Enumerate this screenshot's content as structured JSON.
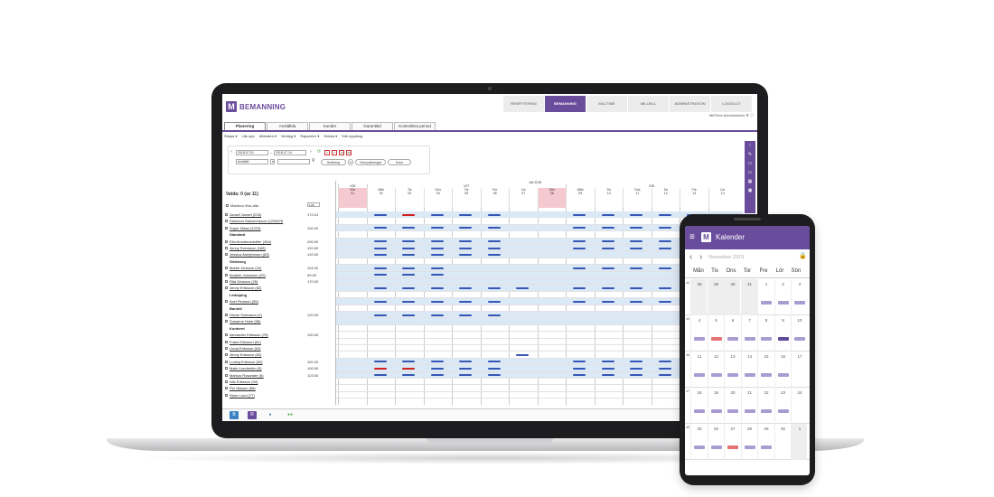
{
  "app": {
    "logo_letter": "M",
    "name": "BEMANNING",
    "topnav": [
      "REKRYTERING",
      "BEMANNING",
      "MILLTIME",
      "MILLBILL",
      "ADMINISTRATION",
      "LOGGA UT"
    ],
    "user_line": "MillTime Administratör",
    "tabs": [
      "Planering",
      "Anställda",
      "Kunder",
      "Garantitid",
      "Kontrollera period"
    ],
    "menu": [
      "Skapa ▾",
      "Lås upp",
      "Attestera ▾",
      "Verktyg ▾",
      "Rapporter ▾",
      "Skicka ▾",
      "Sök uppdrag"
    ]
  },
  "filters": {
    "date_from": "2018-07-01",
    "date_to": "2018-07-14",
    "select": "Anställd",
    "buttons": [
      "Sortering",
      "Visa justeringar",
      "Kolor"
    ],
    "cal_icons": [
      "1",
      "7",
      "14",
      "30"
    ]
  },
  "grid": {
    "selected": "Valda: 0 (av 11)",
    "mark_all": "Markera Visa alla",
    "sort_label": "Lös",
    "month": "Juli 2018",
    "weeks": [
      "V26",
      "V27",
      "V28"
    ],
    "days": [
      {
        "wd": "Sön",
        "d": "01",
        "we": true
      },
      {
        "wd": "Mån",
        "d": "02",
        "we": false
      },
      {
        "wd": "Tis",
        "d": "03",
        "we": false
      },
      {
        "wd": "Ons",
        "d": "04",
        "we": false
      },
      {
        "wd": "Tor",
        "d": "05",
        "we": false
      },
      {
        "wd": "Fre",
        "d": "06",
        "we": false
      },
      {
        "wd": "Lör",
        "d": "07",
        "we": false
      },
      {
        "wd": "Sön",
        "d": "08",
        "we": true
      },
      {
        "wd": "Mån",
        "d": "09",
        "we": false
      },
      {
        "wd": "Tis",
        "d": "10",
        "we": false
      },
      {
        "wd": "Ons",
        "d": "11",
        "we": false
      },
      {
        "wd": "Tor",
        "d": "12",
        "we": false
      },
      {
        "wd": "Fre",
        "d": "13",
        "we": false
      },
      {
        "wd": "Lör",
        "d": "14",
        "we": false
      }
    ],
    "rows": [
      {
        "name": "Joosef Joosef (233)",
        "val": "172.41",
        "grp": false
      },
      {
        "name": "Salomon Salomonsson (1234578",
        "val": "",
        "grp": false
      },
      {
        "name": "Super Nisse (1223)",
        "val": "110.00",
        "grp": false
      },
      {
        "name": "Standard",
        "val": "",
        "grp": true
      },
      {
        "name": "Elia Amadeusdottier (454)",
        "val": "200.00",
        "grp": false
      },
      {
        "name": "Jenny Svensson (188)",
        "val": "120.00",
        "grp": false
      },
      {
        "name": "Jessica Ambjörnsen (63)",
        "val": "120.00",
        "grp": false
      },
      {
        "name": "Göteborg",
        "val": "",
        "grp": true
      },
      {
        "name": "Martin Jönsson (24)",
        "val": "113.00",
        "grp": false
      },
      {
        "name": "Ibrahim Johnsson (29)",
        "val": "99.00",
        "grp": false
      },
      {
        "name": "Rita Jönsson (25)",
        "val": "170.00",
        "grp": false
      },
      {
        "name": "Jenny Eriksson (82)",
        "val": "",
        "grp": false
      },
      {
        "name": "Linköping",
        "val": "",
        "grp": true
      },
      {
        "name": "Axel Persson (55)",
        "val": "",
        "grp": false
      },
      {
        "name": "Barnbil",
        "val": "",
        "grp": true
      },
      {
        "name": "Göran Svensson (2)",
        "val": "120.00",
        "grp": false
      },
      {
        "name": "Susanne Holm (58)",
        "val": "",
        "grp": false
      },
      {
        "name": "Kontoret",
        "val": "",
        "grp": true
      },
      {
        "name": "Alexander Eriksson (78)",
        "val": "100.00",
        "grp": false
      },
      {
        "name": "Frans Eriksson (81)",
        "val": "",
        "grp": false
      },
      {
        "name": "Linda Eriksson (64)",
        "val": "",
        "grp": false
      },
      {
        "name": "Jenny Eriksson (82)",
        "val": "",
        "grp": false
      },
      {
        "name": "Ludvig Eriksson (82)",
        "val": "110.00",
        "grp": false
      },
      {
        "name": "Malin Lundström (5)",
        "val": "100.00",
        "grp": false
      },
      {
        "name": "Markus Rosander (6)",
        "val": "123.00",
        "grp": false
      },
      {
        "name": "Nils Eriksson (30)",
        "val": "",
        "grp": false
      },
      {
        "name": "Per Nilsson (58)",
        "val": "",
        "grp": false
      },
      {
        "name": "Sture Lund (77)",
        "val": "",
        "grp": false
      }
    ]
  },
  "phone": {
    "title": "Kalender",
    "month": "November 2019",
    "weekdays": [
      "Mån",
      "Tis",
      "Ons",
      "Tor",
      "Fre",
      "Lör",
      "Sön"
    ],
    "weeks": [
      {
        "wn": "44",
        "days": [
          "28",
          "29",
          "30",
          "31",
          "1",
          "2",
          "3"
        ]
      },
      {
        "wn": "45",
        "days": [
          "4",
          "5",
          "6",
          "7",
          "8",
          "9",
          "10"
        ]
      },
      {
        "wn": "46",
        "days": [
          "11",
          "12",
          "13",
          "14",
          "15",
          "16",
          "17"
        ]
      },
      {
        "wn": "47",
        "days": [
          "18",
          "19",
          "20",
          "21",
          "22",
          "23",
          "24"
        ]
      },
      {
        "wn": "48",
        "days": [
          "25",
          "26",
          "27",
          "28",
          "29",
          "30",
          "1"
        ]
      }
    ]
  }
}
